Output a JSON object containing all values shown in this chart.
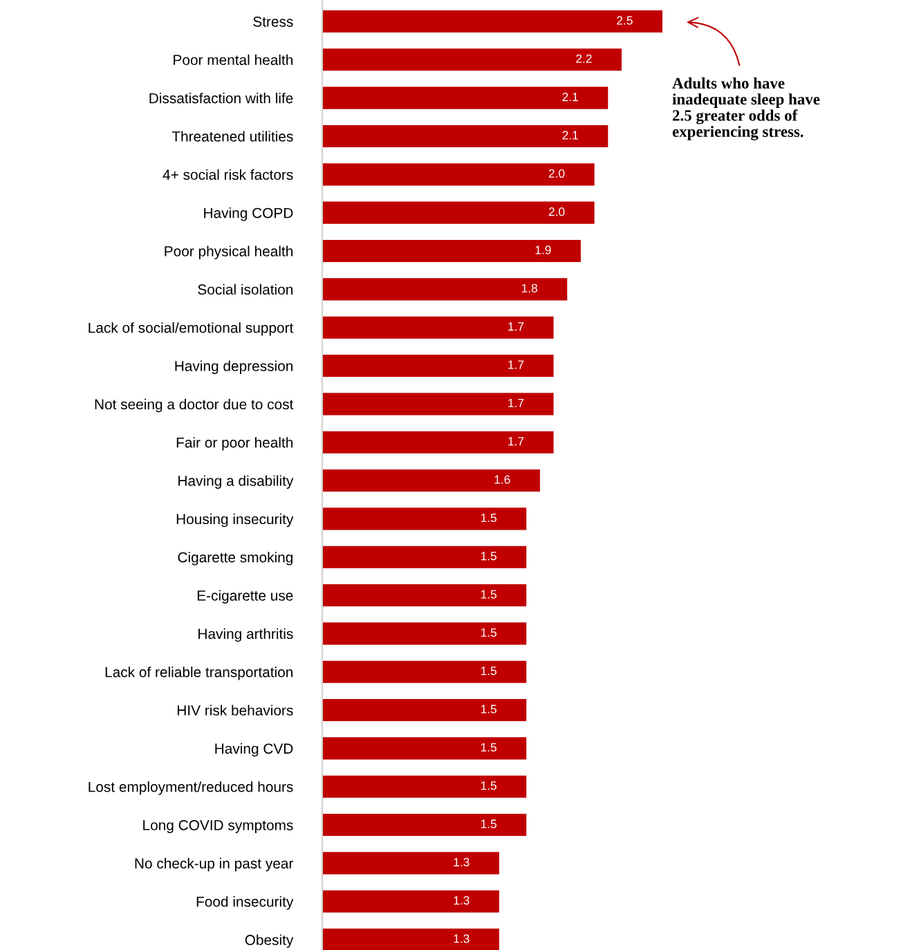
{
  "chart_data": {
    "type": "bar",
    "orientation": "horizontal",
    "grid": false,
    "legend": false,
    "tick_labels": "y",
    "categories": [
      "Stress",
      "Poor mental health",
      "Dissatisfaction with life",
      "Threatened utilities",
      "4+ social risk factors",
      "Having COPD",
      "Poor physical health",
      "Social isolation",
      "Lack of social/emotional support",
      "Having depression",
      "Not seeing a doctor due to cost",
      "Fair or poor health",
      "Having a disability",
      "Housing insecurity",
      "Cigarette smoking",
      "E-cigarette use",
      "Having arthritis",
      "Lack of reliable transportation",
      "HIV risk behaviors",
      "Having CVD",
      "Lost employment/reduced hours",
      "Long COVID symptoms",
      "No check-up in past year",
      "Food insecurity",
      "Obesity"
    ],
    "values": [
      2.5,
      2.2,
      2.1,
      2.1,
      2.0,
      2.0,
      1.9,
      1.8,
      1.7,
      1.7,
      1.7,
      1.7,
      1.6,
      1.5,
      1.5,
      1.5,
      1.5,
      1.5,
      1.5,
      1.5,
      1.5,
      1.5,
      1.3,
      1.3,
      1.3
    ],
    "value_labels": [
      "2.5",
      "2.2",
      "2.1",
      "2.1",
      "2.0",
      "2.0",
      "1.9",
      "1.8",
      "1.7",
      "1.7",
      "1.7",
      "1.7",
      "1.6",
      "1.5",
      "1.5",
      "1.5",
      "1.5",
      "1.5",
      "1.5",
      "1.5",
      "1.5",
      "1.5",
      "1.3",
      "1.3",
      "1.3"
    ],
    "color": "#c00000",
    "annotations": [
      "Adults who have\ninadequate sleep have\n2.5 greater odds of\nexperiencing stress."
    ]
  }
}
